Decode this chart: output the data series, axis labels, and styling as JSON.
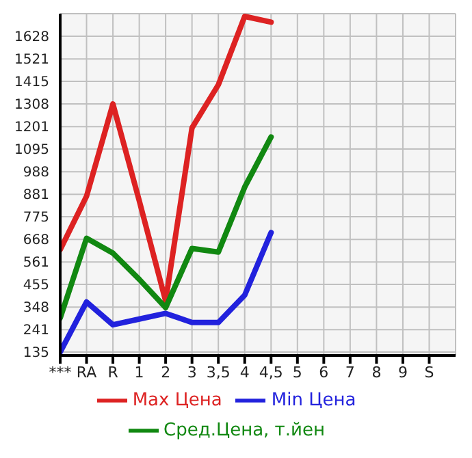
{
  "chart_data": {
    "type": "line",
    "categories": [
      "***",
      "RA",
      "R",
      "1",
      "2",
      "3",
      "3,5",
      "4",
      "4,5",
      "5",
      "6",
      "7",
      "8",
      "9",
      "S"
    ],
    "series": [
      {
        "name": "Max Цена",
        "color": "#dd2222",
        "values": [
          619,
          872,
          1308,
          850,
          377,
          1195,
          1399,
          1722,
          1695,
          null,
          null,
          null,
          null,
          null,
          null
        ]
      },
      {
        "name": "Min Цена",
        "color": "#2222dd",
        "values": [
          135,
          372,
          264,
          291,
          318,
          275,
          275,
          404,
          700,
          null,
          null,
          null,
          null,
          null,
          null
        ]
      },
      {
        "name": "Сред.Цена, т.йен",
        "color": "#118811",
        "values": [
          296,
          673,
          603,
          479,
          345,
          625,
          608,
          915,
          1152,
          null,
          null,
          null,
          null,
          null,
          null
        ]
      }
    ],
    "ylim": [
      119,
      1735
    ],
    "yticks": [
      135,
      241,
      348,
      455,
      561,
      668,
      775,
      881,
      988,
      1095,
      1201,
      1308,
      1415,
      1521,
      1628
    ],
    "grid": true,
    "legend": "bottom",
    "marker": "none",
    "line_style": "solid"
  }
}
